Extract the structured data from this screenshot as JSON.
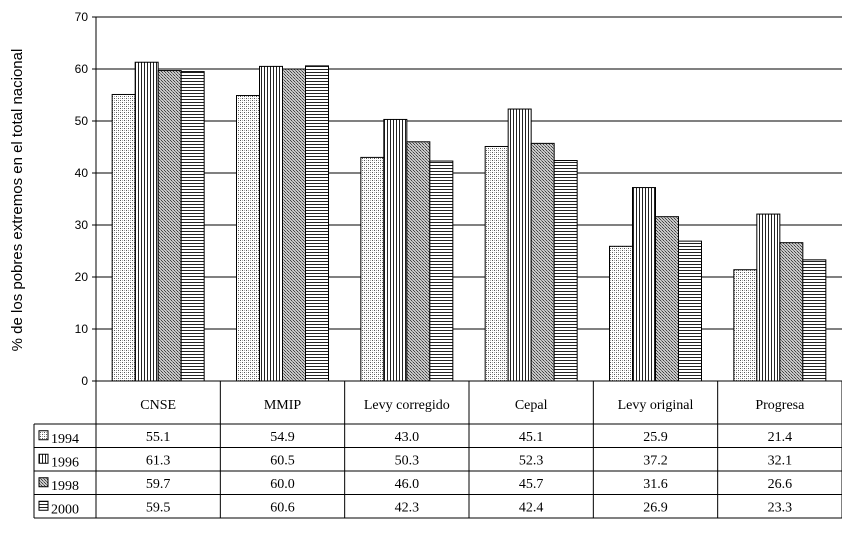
{
  "chart_data": {
    "type": "bar",
    "title": "",
    "ylabel": "% de los pobres extremos en el total nacional",
    "xlabel": "",
    "ylim": [
      0,
      70
    ],
    "yticks": [
      0,
      10,
      20,
      30,
      40,
      50,
      60,
      70
    ],
    "grid": true,
    "legend": "data-table",
    "categories": [
      "CNSE",
      "MMIP",
      "Levy corregido",
      "Cepal",
      "Levy original",
      "Progresa"
    ],
    "series": [
      {
        "name": "1994",
        "values": [
          55.1,
          54.9,
          43.0,
          45.1,
          25.9,
          21.4
        ],
        "labels": [
          "55.1",
          "54.9",
          "43.0",
          "45.1",
          "25.9",
          "21.4"
        ],
        "pattern": "dots"
      },
      {
        "name": "1996",
        "values": [
          61.3,
          60.5,
          50.3,
          52.3,
          37.2,
          32.1
        ],
        "labels": [
          "61.3",
          "60.5",
          "50.3",
          "52.3",
          "37.2",
          "32.1"
        ],
        "pattern": "vertical"
      },
      {
        "name": "1998",
        "values": [
          59.7,
          60.0,
          46.0,
          45.7,
          31.6,
          26.6
        ],
        "labels": [
          "59.7",
          "60.0",
          "46.0",
          "45.7",
          "31.6",
          "26.6"
        ],
        "pattern": "cross"
      },
      {
        "name": "2000",
        "values": [
          59.5,
          60.6,
          42.3,
          42.4,
          26.9,
          23.3
        ],
        "labels": [
          "59.5",
          "60.6",
          "42.3",
          "42.4",
          "26.9",
          "23.3"
        ],
        "pattern": "horizontal"
      }
    ]
  }
}
